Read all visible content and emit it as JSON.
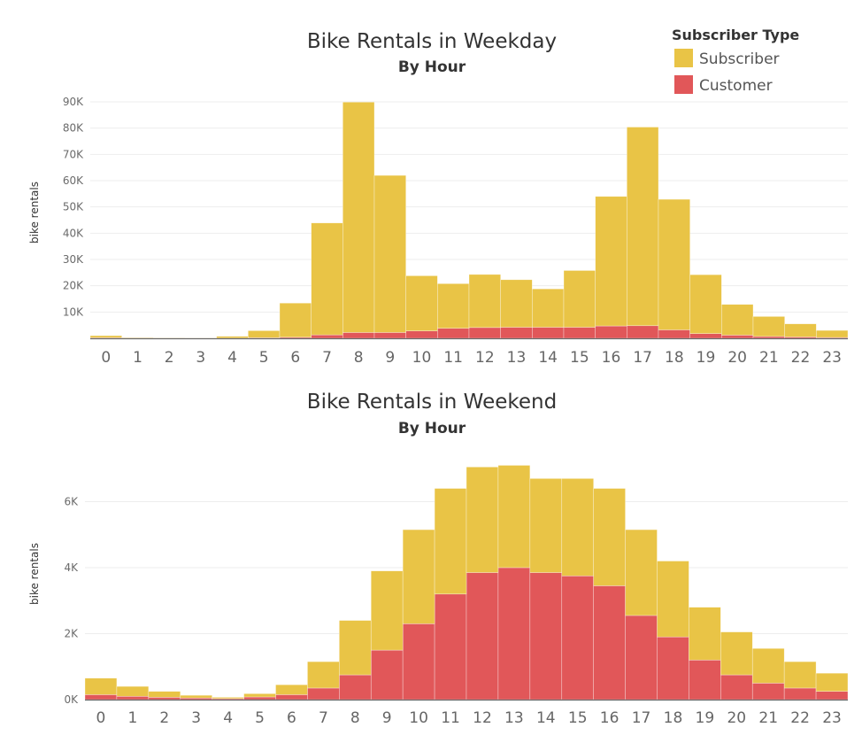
{
  "legend": {
    "title": "Subscriber Type",
    "items": [
      {
        "label": "Subscriber",
        "color": "#E9C446"
      },
      {
        "label": "Customer",
        "color": "#E15759"
      }
    ]
  },
  "chart_data": [
    {
      "type": "bar",
      "stacked": true,
      "title": "Bike Rentals in Weekday",
      "subtitle": "By Hour",
      "xlabel": "",
      "ylabel": "bike rentals",
      "ylim": [
        0,
        90000
      ],
      "yticks": [
        10000,
        20000,
        30000,
        40000,
        50000,
        60000,
        70000,
        80000,
        90000
      ],
      "ytick_labels": [
        "10K",
        "20K",
        "30K",
        "40K",
        "50K",
        "60K",
        "70K",
        "80K",
        "90K"
      ],
      "grid": true,
      "categories": [
        "0",
        "1",
        "2",
        "3",
        "4",
        "5",
        "6",
        "7",
        "8",
        "9",
        "10",
        "11",
        "12",
        "13",
        "14",
        "15",
        "16",
        "17",
        "18",
        "19",
        "20",
        "21",
        "22",
        "23"
      ],
      "series": [
        {
          "name": "Customer",
          "color": "#E15759",
          "values": [
            200,
            100,
            50,
            30,
            50,
            200,
            400,
            1300,
            2200,
            2200,
            2800,
            3800,
            4100,
            4200,
            4200,
            4200,
            4700,
            4800,
            3200,
            1800,
            1200,
            700,
            500,
            300
          ]
        },
        {
          "name": "Subscriber",
          "color": "#E9C446",
          "values": [
            800,
            200,
            100,
            50,
            700,
            2700,
            13000,
            42600,
            87700,
            59800,
            21000,
            17000,
            20200,
            18100,
            14600,
            21600,
            49300,
            75600,
            49700,
            22400,
            11700,
            7600,
            5000,
            2700
          ]
        }
      ]
    },
    {
      "type": "bar",
      "stacked": true,
      "title": "Bike Rentals in Weekend",
      "subtitle": "By Hour",
      "xlabel": "",
      "ylabel": "bike rentals",
      "ylim": [
        0,
        7300
      ],
      "yticks": [
        0,
        2000,
        4000,
        6000
      ],
      "ytick_labels": [
        "0K",
        "2K",
        "4K",
        "6K"
      ],
      "grid": true,
      "categories": [
        "0",
        "1",
        "2",
        "3",
        "4",
        "5",
        "6",
        "7",
        "8",
        "9",
        "10",
        "11",
        "12",
        "13",
        "14",
        "15",
        "16",
        "17",
        "18",
        "19",
        "20",
        "21",
        "22",
        "23"
      ],
      "series": [
        {
          "name": "Customer",
          "color": "#E15759",
          "values": [
            150,
            100,
            70,
            50,
            30,
            80,
            150,
            350,
            750,
            1500,
            2300,
            3200,
            3850,
            4000,
            3850,
            3750,
            3450,
            2550,
            1900,
            1200,
            750,
            500,
            350,
            250
          ]
        },
        {
          "name": "Subscriber",
          "color": "#E9C446",
          "values": [
            500,
            300,
            180,
            80,
            40,
            100,
            300,
            800,
            1650,
            2400,
            2850,
            3200,
            3200,
            3100,
            2850,
            2950,
            2950,
            2600,
            2300,
            1600,
            1300,
            1050,
            800,
            550
          ]
        }
      ]
    }
  ]
}
